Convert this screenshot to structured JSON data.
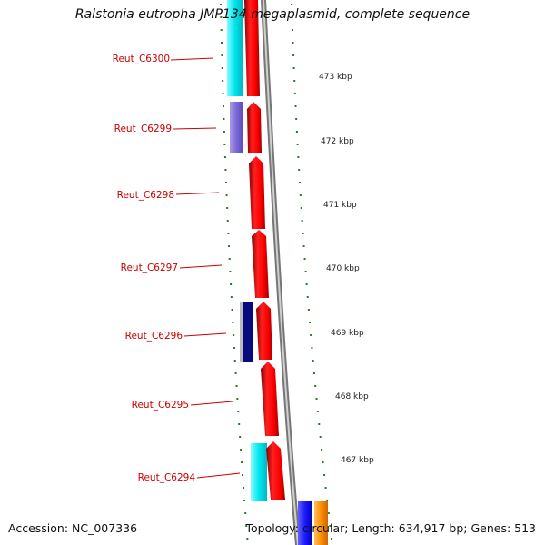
{
  "title": "Ralstonia eutropha JMP134 megaplasmid, complete sequence",
  "footer": {
    "accession": "Accession: NC_007336",
    "summary": "Topology: circular; Length: 634,917 bp; Genes: 513"
  },
  "genes": [
    {
      "label": "Reut_C6300",
      "color": "#ff0000",
      "arrow": true
    },
    {
      "label": "Reut_C6299",
      "color": "#ff0000",
      "arrow": true
    },
    {
      "label": "Reut_C6298",
      "color": "#ff0000",
      "arrow": true
    },
    {
      "label": "Reut_C6297",
      "color": "#ff0000",
      "arrow": true
    },
    {
      "label": "Reut_C6296",
      "color": "#ff0000",
      "arrow": true
    },
    {
      "label": "Reut_C6295",
      "color": "#ff0000",
      "arrow": true
    },
    {
      "label": "Reut_C6294",
      "color": "#ff0000",
      "arrow": true
    }
  ],
  "cog_colors": [
    "#00e5ee",
    "#7b68d8",
    "#00e5ee",
    "#00008b",
    "#1a1aff",
    "#ff8c00"
  ],
  "kbp_labels": [
    "473 kbp",
    "472 kbp",
    "471 kbp",
    "470 kbp",
    "469 kbp",
    "468 kbp",
    "467 kbp"
  ]
}
